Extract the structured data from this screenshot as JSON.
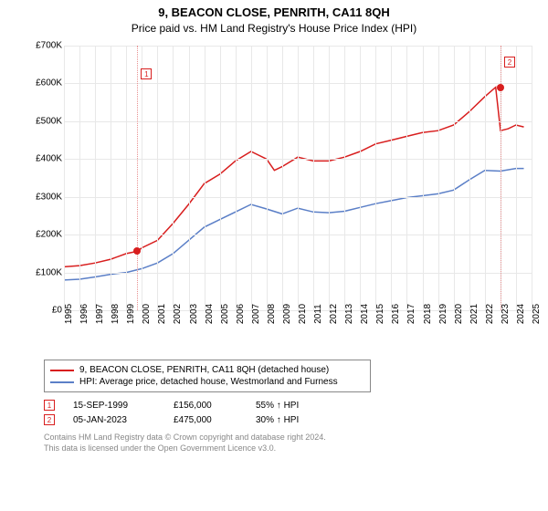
{
  "title": "9, BEACON CLOSE, PENRITH, CA11 8QH",
  "subtitle": "Price paid vs. HM Land Registry's House Price Index (HPI)",
  "chart": {
    "type": "line",
    "background_color": "#ffffff",
    "grid_color": "#e8e8e8",
    "axis_fontsize": 10,
    "y": {
      "min": 0,
      "max": 700,
      "step": 100,
      "prefix": "£",
      "suffix": "K",
      "ticks": [
        0,
        100,
        200,
        300,
        400,
        500,
        600,
        700
      ]
    },
    "x": {
      "min": 1995,
      "max": 2025,
      "ticks": [
        1995,
        1996,
        1997,
        1998,
        1999,
        2000,
        2001,
        2002,
        2003,
        2004,
        2005,
        2006,
        2007,
        2008,
        2009,
        2010,
        2011,
        2012,
        2013,
        2014,
        2015,
        2016,
        2017,
        2018,
        2019,
        2020,
        2021,
        2022,
        2023,
        2024,
        2025
      ]
    },
    "series": [
      {
        "id": "property",
        "label": "9, BEACON CLOSE, PENRITH, CA11 8QH (detached house)",
        "color": "#d81e1e",
        "stroke_width": 1.5,
        "points": [
          [
            1995,
            115
          ],
          [
            1996,
            118
          ],
          [
            1997,
            125
          ],
          [
            1998,
            135
          ],
          [
            1999,
            150
          ],
          [
            1999.71,
            156
          ],
          [
            2000,
            165
          ],
          [
            2001,
            185
          ],
          [
            2002,
            230
          ],
          [
            2003,
            280
          ],
          [
            2004,
            335
          ],
          [
            2005,
            360
          ],
          [
            2006,
            395
          ],
          [
            2007,
            420
          ],
          [
            2008,
            400
          ],
          [
            2008.5,
            370
          ],
          [
            2009,
            380
          ],
          [
            2010,
            405
          ],
          [
            2011,
            395
          ],
          [
            2012,
            395
          ],
          [
            2013,
            405
          ],
          [
            2014,
            420
          ],
          [
            2015,
            440
          ],
          [
            2016,
            450
          ],
          [
            2017,
            460
          ],
          [
            2018,
            470
          ],
          [
            2019,
            475
          ],
          [
            2020,
            490
          ],
          [
            2021,
            525
          ],
          [
            2022,
            565
          ],
          [
            2022.7,
            590
          ],
          [
            2023.01,
            475
          ],
          [
            2023.5,
            480
          ],
          [
            2024,
            490
          ],
          [
            2024.5,
            485
          ]
        ]
      },
      {
        "id": "hpi",
        "label": "HPI: Average price, detached house, Westmorland and Furness",
        "color": "#5b7fc7",
        "stroke_width": 1.5,
        "points": [
          [
            1995,
            80
          ],
          [
            1996,
            82
          ],
          [
            1997,
            88
          ],
          [
            1998,
            95
          ],
          [
            1999,
            100
          ],
          [
            2000,
            110
          ],
          [
            2001,
            125
          ],
          [
            2002,
            150
          ],
          [
            2003,
            185
          ],
          [
            2004,
            220
          ],
          [
            2005,
            240
          ],
          [
            2006,
            260
          ],
          [
            2007,
            280
          ],
          [
            2008,
            268
          ],
          [
            2009,
            255
          ],
          [
            2010,
            270
          ],
          [
            2011,
            260
          ],
          [
            2012,
            258
          ],
          [
            2013,
            262
          ],
          [
            2014,
            272
          ],
          [
            2015,
            282
          ],
          [
            2016,
            290
          ],
          [
            2017,
            298
          ],
          [
            2018,
            303
          ],
          [
            2019,
            308
          ],
          [
            2020,
            318
          ],
          [
            2021,
            345
          ],
          [
            2022,
            370
          ],
          [
            2023,
            368
          ],
          [
            2024,
            375
          ],
          [
            2024.5,
            375
          ]
        ]
      }
    ],
    "vlines": [
      {
        "x": 1999.71,
        "color": "#e89090",
        "marker": "1",
        "marker_color": "#d81e1e",
        "marker_y": 640
      },
      {
        "x": 2023.01,
        "color": "#e89090",
        "marker": "2",
        "marker_color": "#d81e1e",
        "marker_y": 672
      }
    ],
    "transactions_marker_color": "#d81e1e"
  },
  "legend": {
    "border_color": "#888888"
  },
  "transactions": [
    {
      "marker": "1",
      "date": "15-SEP-1999",
      "price": "£156,000",
      "pct": "55% ↑ HPI"
    },
    {
      "marker": "2",
      "date": "05-JAN-2023",
      "price": "£475,000",
      "pct": "30% ↑ HPI"
    }
  ],
  "footer": {
    "line1": "Contains HM Land Registry data © Crown copyright and database right 2024.",
    "line2": "This data is licensed under the Open Government Licence v3.0."
  }
}
